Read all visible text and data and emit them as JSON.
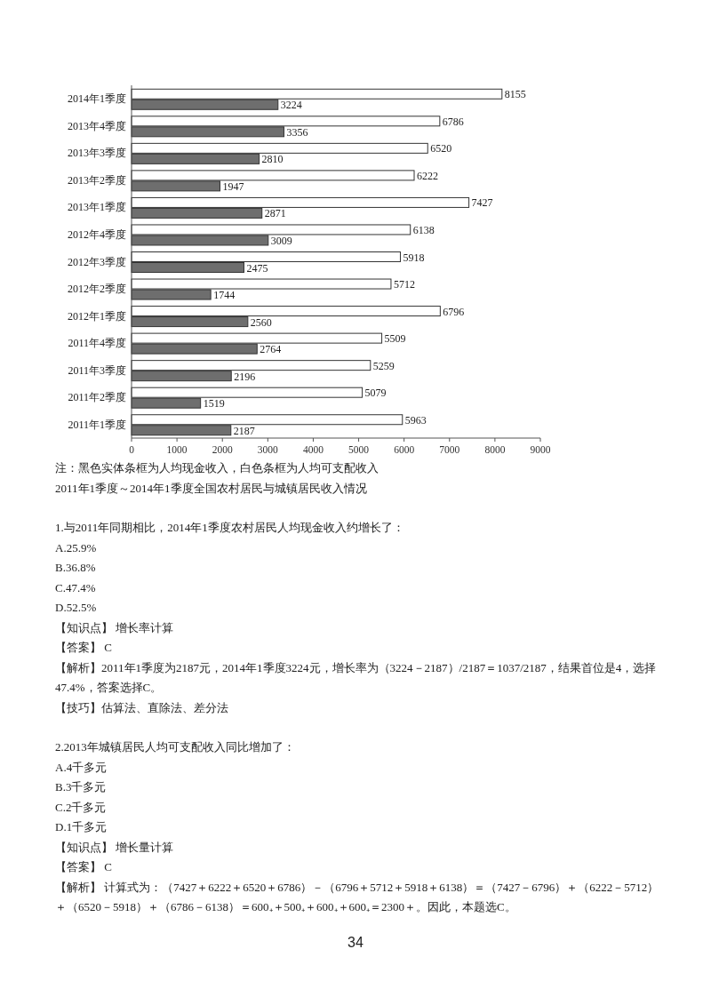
{
  "chart_data": {
    "type": "bar",
    "orientation": "horizontal",
    "categories": [
      "2014年1季度",
      "2013年4季度",
      "2013年3季度",
      "2013年2季度",
      "2013年1季度",
      "2012年4季度",
      "2012年3季度",
      "2012年2季度",
      "2012年1季度",
      "2011年4季度",
      "2011年3季度",
      "2011年2季度",
      "2011年1季度"
    ],
    "series": [
      {
        "color": "#ffffff",
        "values": [
          8155,
          6786,
          6520,
          6222,
          7427,
          6138,
          5918,
          5712,
          6796,
          5509,
          5259,
          5079,
          5963
        ]
      },
      {
        "color": "#6e6e6e",
        "values": [
          3224,
          3356,
          2810,
          1947,
          2871,
          3009,
          2475,
          1744,
          2560,
          2764,
          2196,
          1519,
          2187
        ]
      }
    ],
    "xlim": [
      0,
      9000
    ],
    "xticks": [
      0,
      1000,
      2000,
      3000,
      4000,
      5000,
      6000,
      7000,
      8000,
      9000
    ],
    "data_labels": true,
    "grid": false,
    "annotations": [
      "注：黑色实体条框为人均现金收入，白色条框为人均可支配收入",
      "2011年1季度～2014年1季度全国农村居民与城镇居民收入情况",
      "1.与2011年同期相比，2014年1季度农村居民人均现金收入约增长了：",
      "A.25.9%",
      "B.36.8%",
      "C.47.4%",
      "D.52.5%",
      "【知识点】 增长率计算",
      "【答案】 C",
      "【解析】2011年1季度为2187元，2014年1季度3224元，增长率为（3224－2187）/2187＝1037/2187，结果首位是4，选择47.4%，答案选择C。",
      "【技巧】估算法、直除法、差分法",
      "2.2013年城镇居民人均可支配收入同比增加了：",
      "A.4千多元",
      "B.3千多元",
      "C.2千多元",
      "D.1千多元",
      "【知识点】 增长量计算",
      "【答案】 C",
      "【解析】 计算式为：（7427＋6222＋6520＋6786）－（6796＋5712＋5918＋6138）＝（7427－6796）＋（6222－5712）＋（6520－5918）＋（6786－6138）＝600₊＋500₊＋600₊＋600₊＝2300＋。因此，本题选C。",
      "34"
    ]
  }
}
